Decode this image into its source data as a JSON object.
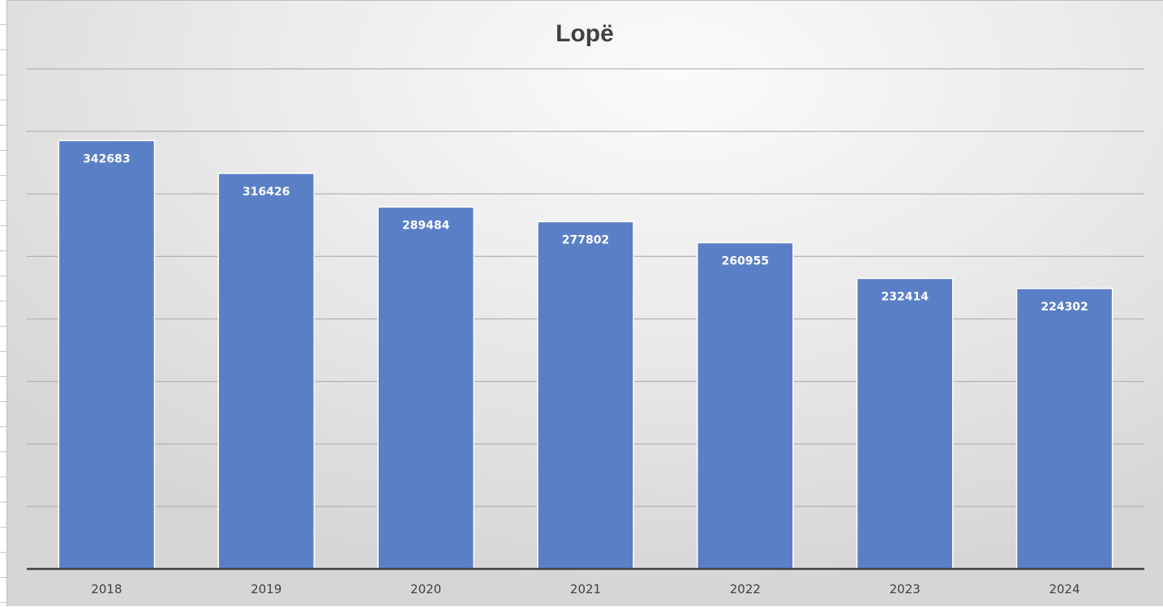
{
  "chart_data": {
    "type": "bar",
    "title": "Lopë",
    "categories": [
      "2018",
      "2019",
      "2020",
      "2021",
      "2022",
      "2023",
      "2024"
    ],
    "values": [
      342683,
      316426,
      289484,
      277802,
      260955,
      232414,
      224302
    ],
    "ylim": [
      0,
      400000
    ],
    "grid": true,
    "legend": "none",
    "colors": {
      "bar": "#5b7fc7",
      "bar_border": "#ffffff",
      "gridline": "#b3b3b3",
      "axis": "#404040"
    }
  }
}
